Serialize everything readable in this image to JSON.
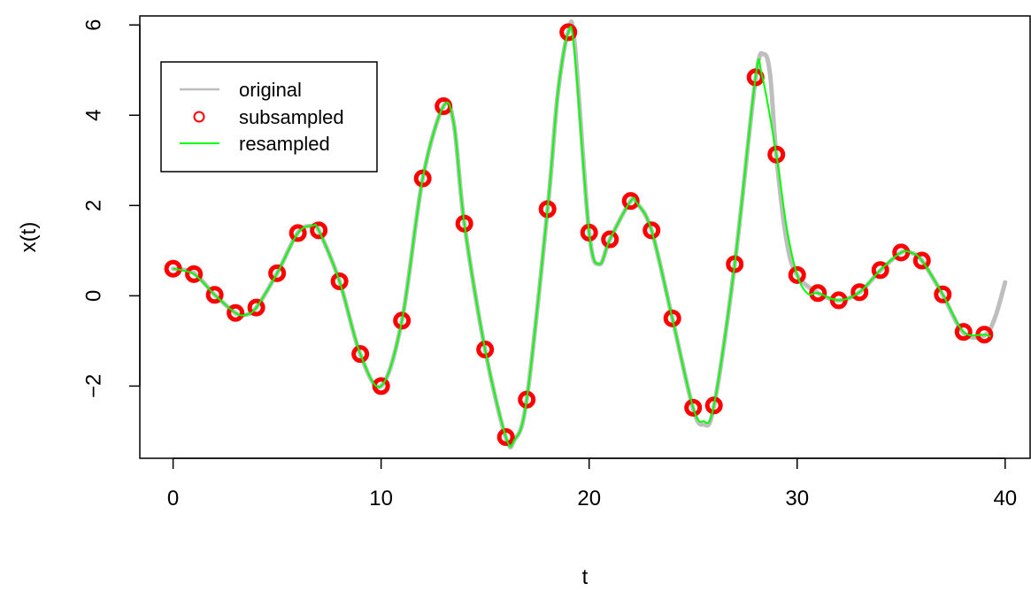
{
  "chart_data": {
    "type": "line",
    "title": "",
    "xlabel": "t",
    "ylabel": "x(t)",
    "xlim": [
      -1.6,
      41.2
    ],
    "ylim": [
      -3.6,
      6.2
    ],
    "x_ticks": [
      0,
      10,
      20,
      30,
      40
    ],
    "x_tick_labels": [
      "0",
      "10",
      "20",
      "30",
      "40"
    ],
    "y_ticks": [
      -2,
      0,
      2,
      4,
      6
    ],
    "y_tick_labels": [
      "−2",
      "0",
      "2",
      "4",
      "6"
    ],
    "grid": false,
    "legend_position": "top-left",
    "legend": [
      {
        "label": "original",
        "kind": "line",
        "color": "#bebebe"
      },
      {
        "label": "subsampled",
        "kind": "point",
        "color": "#ff0000"
      },
      {
        "label": "resampled",
        "kind": "line",
        "color": "#00ff00"
      }
    ],
    "colors": {
      "original": "#bebebe",
      "subsampled": "#ff0000",
      "resampled": "#00ff00"
    },
    "series": [
      {
        "name": "original",
        "style": "line",
        "x": [
          0,
          1,
          2,
          3,
          3.5,
          4,
          5,
          6,
          6.7,
          7,
          8,
          9,
          10,
          11,
          12,
          13,
          13.5,
          14,
          15,
          16,
          16.4,
          17,
          18,
          18.5,
          19,
          19.3,
          20,
          20.5,
          21,
          22,
          22.3,
          23,
          24,
          25,
          25.5,
          26,
          27,
          28,
          28.4,
          28.7,
          29,
          29.5,
          30,
          31,
          32,
          33,
          34,
          35,
          35.5,
          36,
          37,
          38,
          39,
          39.5,
          40
        ],
        "y": [
          0.6,
          0.5,
          0.02,
          -0.38,
          -0.42,
          -0.26,
          0.5,
          1.4,
          1.55,
          1.45,
          0.32,
          -1.3,
          -2.0,
          -0.55,
          2.6,
          4.2,
          3.8,
          1.6,
          -1.2,
          -3.15,
          -3.2,
          -2.3,
          1.9,
          4.5,
          5.85,
          5.6,
          1.4,
          0.7,
          1.25,
          2.1,
          2.05,
          1.45,
          -0.5,
          -2.5,
          -2.85,
          -2.45,
          0.7,
          4.8,
          5.35,
          4.9,
          3.1,
          1.2,
          0.46,
          0.06,
          -0.1,
          0.08,
          0.56,
          0.96,
          0.95,
          0.78,
          0.02,
          -0.82,
          -0.88,
          -0.5,
          0.3
        ]
      },
      {
        "name": "subsampled",
        "style": "points",
        "x": [
          0,
          1,
          2,
          3,
          4,
          5,
          6,
          7,
          8,
          9,
          10,
          11,
          12,
          13,
          14,
          15,
          16,
          17,
          18,
          19,
          20,
          21,
          22,
          23,
          24,
          25,
          26,
          27,
          28,
          29,
          30,
          31,
          32,
          33,
          34,
          35,
          36,
          37,
          38,
          39
        ],
        "y": [
          0.6,
          0.48,
          0.02,
          -0.38,
          -0.26,
          0.5,
          1.39,
          1.45,
          0.32,
          -1.29,
          -2.0,
          -0.55,
          2.6,
          4.2,
          1.6,
          -1.19,
          -3.13,
          -2.3,
          1.92,
          5.84,
          1.4,
          1.25,
          2.1,
          1.45,
          -0.5,
          -2.48,
          -2.43,
          0.7,
          4.84,
          3.13,
          0.46,
          0.06,
          -0.1,
          0.08,
          0.57,
          0.96,
          0.78,
          0.03,
          -0.8,
          -0.86
        ]
      },
      {
        "name": "resampled",
        "style": "line",
        "x": [
          0,
          1,
          2,
          3,
          3.5,
          4,
          5,
          6,
          6.7,
          7,
          8,
          9,
          10,
          11,
          12,
          13,
          13.5,
          14,
          15,
          16,
          16.4,
          17,
          18,
          18.5,
          19,
          19.3,
          20,
          20.5,
          21,
          22,
          22.3,
          23,
          24,
          25,
          25.5,
          26,
          27,
          28,
          28.3,
          29,
          29.5,
          30,
          30.5,
          31,
          32,
          33,
          34,
          35,
          35.5,
          36,
          37,
          38,
          39,
          39.3
        ],
        "y": [
          0.6,
          0.48,
          0.02,
          -0.38,
          -0.42,
          -0.26,
          0.5,
          1.39,
          1.55,
          1.45,
          0.32,
          -1.29,
          -2.0,
          -0.55,
          2.6,
          4.2,
          3.8,
          1.6,
          -1.19,
          -3.13,
          -3.2,
          -2.3,
          1.92,
          4.5,
          5.84,
          5.4,
          1.4,
          0.7,
          1.25,
          2.1,
          2.05,
          1.45,
          -0.5,
          -2.48,
          -2.78,
          -2.43,
          0.7,
          4.84,
          4.9,
          3.13,
          1.5,
          0.46,
          0.05,
          0.06,
          -0.1,
          0.08,
          0.57,
          0.96,
          0.95,
          0.78,
          0.03,
          -0.8,
          -0.86,
          -0.9
        ]
      }
    ]
  }
}
